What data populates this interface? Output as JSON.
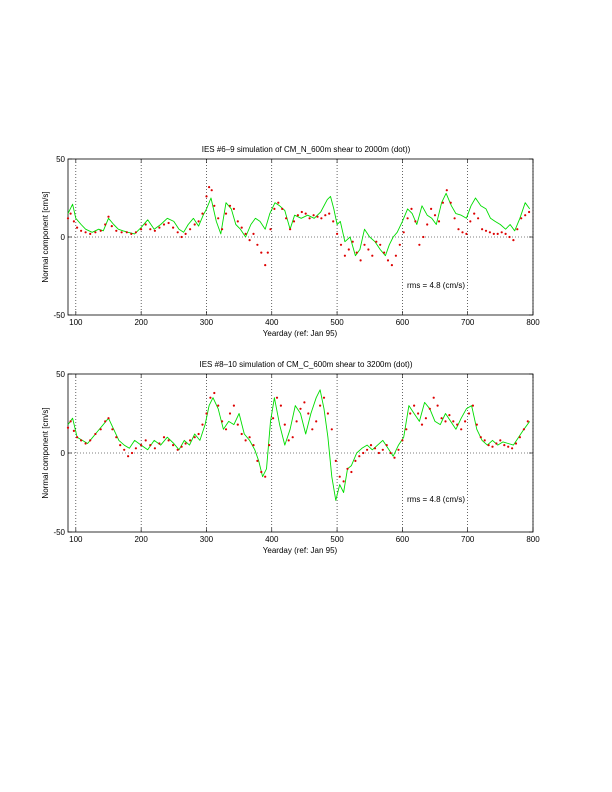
{
  "chart_data": [
    {
      "type": "line",
      "title": "IES #6–9 simulation of CM_N_600m shear to 2000m (dot))",
      "xlabel": "Yearday (ref: Jan 95)",
      "ylabel": "Normal component [cm/s]",
      "xlim": [
        88,
        800
      ],
      "ylim": [
        -50,
        50
      ],
      "xticks": [
        100,
        200,
        300,
        400,
        500,
        600,
        700,
        800
      ],
      "yticks": [
        -50,
        0,
        50
      ],
      "grid": "dotted vertical at x ticks, dotted horizontal at y=0",
      "annotation": "rms = 4.8 (cm/s)",
      "series": [
        {
          "style": "solid",
          "color": "#00dd00",
          "x": [
            88,
            95,
            100,
            108,
            115,
            125,
            135,
            142,
            150,
            158,
            165,
            172,
            180,
            190,
            200,
            210,
            220,
            230,
            240,
            250,
            258,
            265,
            272,
            280,
            288,
            295,
            300,
            307,
            315,
            322,
            330,
            338,
            345,
            352,
            360,
            368,
            375,
            382,
            390,
            397,
            405,
            412,
            420,
            428,
            435,
            445,
            455,
            465,
            475,
            485,
            490,
            495,
            500,
            505,
            512,
            520,
            528,
            535,
            542,
            550,
            558,
            566,
            574,
            580,
            586,
            592,
            600,
            608,
            615,
            622,
            630,
            638,
            645,
            652,
            660,
            667,
            675,
            682,
            690,
            698,
            705,
            712,
            720,
            728,
            735,
            742,
            750,
            758,
            765,
            772,
            780,
            788,
            795
          ],
          "y": [
            15,
            21,
            12,
            8,
            5,
            3,
            5,
            4,
            12,
            8,
            5,
            4,
            3,
            2,
            6,
            11,
            5,
            8,
            12,
            10,
            5,
            3,
            8,
            12,
            7,
            14,
            18,
            25,
            10,
            2,
            22,
            18,
            8,
            5,
            0,
            8,
            12,
            10,
            5,
            15,
            22,
            20,
            17,
            5,
            14,
            12,
            14,
            12,
            16,
            24,
            26,
            18,
            8,
            10,
            -3,
            0,
            -12,
            -8,
            5,
            0,
            -3,
            -8,
            -12,
            -5,
            0,
            3,
            10,
            18,
            15,
            8,
            20,
            14,
            12,
            8,
            22,
            28,
            20,
            15,
            14,
            12,
            20,
            25,
            20,
            18,
            12,
            10,
            8,
            5,
            8,
            4,
            12,
            22,
            18
          ]
        },
        {
          "style": "dots",
          "color": "#dd0000",
          "x": [
            88,
            92,
            97,
            102,
            108,
            115,
            122,
            130,
            138,
            145,
            150,
            155,
            162,
            170,
            178,
            185,
            192,
            200,
            207,
            214,
            221,
            228,
            235,
            242,
            249,
            256,
            262,
            268,
            275,
            282,
            288,
            294,
            300,
            304,
            308,
            312,
            318,
            324,
            330,
            336,
            342,
            348,
            354,
            360,
            366,
            372,
            378,
            384,
            390,
            394,
            398,
            404,
            410,
            416,
            422,
            428,
            434,
            440,
            446,
            452,
            458,
            464,
            470,
            476,
            482,
            488,
            494,
            500,
            506,
            512,
            518,
            524,
            530,
            536,
            542,
            548,
            554,
            560,
            566,
            572,
            578,
            584,
            590,
            596,
            602,
            608,
            614,
            620,
            626,
            632,
            638,
            644,
            650,
            656,
            662,
            668,
            674,
            680,
            686,
            692,
            698,
            704,
            710,
            716,
            722,
            728,
            734,
            740,
            746,
            752,
            758,
            764,
            770,
            776,
            782,
            788,
            794
          ],
          "y": [
            12,
            15,
            10,
            6,
            4,
            3,
            2,
            3,
            4,
            8,
            13,
            7,
            4,
            3,
            3,
            2,
            3,
            5,
            8,
            5,
            4,
            6,
            8,
            9,
            6,
            3,
            0,
            2,
            5,
            8,
            10,
            15,
            26,
            32,
            30,
            20,
            12,
            5,
            15,
            20,
            18,
            10,
            6,
            2,
            -2,
            2,
            -5,
            -10,
            -18,
            -10,
            5,
            18,
            22,
            18,
            12,
            5,
            10,
            14,
            16,
            15,
            12,
            14,
            13,
            12,
            14,
            15,
            10,
            2,
            -5,
            -12,
            -8,
            -3,
            -10,
            -15,
            -5,
            -8,
            -12,
            -3,
            -5,
            -10,
            -15,
            -18,
            -12,
            -5,
            3,
            12,
            18,
            10,
            -5,
            0,
            8,
            18,
            14,
            10,
            22,
            30,
            22,
            12,
            5,
            3,
            2,
            10,
            15,
            12,
            5,
            4,
            3,
            2,
            2,
            3,
            2,
            0,
            -2,
            5,
            12,
            14,
            16
          ]
        }
      ]
    },
    {
      "type": "line",
      "title": "IES #8–10 simulation of CM_C_600m shear to 3200m (dot))",
      "xlabel": "Yearday (ref: Jan 95)",
      "ylabel": "Normal component [cm/s]",
      "xlim": [
        88,
        800
      ],
      "ylim": [
        -50,
        50
      ],
      "xticks": [
        100,
        200,
        300,
        400,
        500,
        600,
        700,
        800
      ],
      "yticks": [
        -50,
        0,
        50
      ],
      "grid": "dotted vertical at x ticks, dotted horizontal at y=0",
      "annotation": "rms = 4.8 (cm/s)",
      "series": [
        {
          "style": "solid",
          "color": "#00dd00",
          "x": [
            88,
            95,
            102,
            110,
            118,
            126,
            134,
            142,
            150,
            158,
            166,
            174,
            182,
            190,
            200,
            210,
            220,
            230,
            240,
            250,
            258,
            266,
            274,
            282,
            290,
            298,
            304,
            310,
            318,
            326,
            334,
            342,
            350,
            358,
            366,
            374,
            380,
            386,
            392,
            398,
            404,
            412,
            420,
            428,
            436,
            444,
            452,
            460,
            468,
            474,
            480,
            486,
            492,
            498,
            504,
            510,
            516,
            522,
            530,
            538,
            546,
            554,
            562,
            570,
            578,
            586,
            594,
            602,
            610,
            618,
            626,
            634,
            642,
            650,
            658,
            666,
            674,
            682,
            690,
            698,
            706,
            714,
            722,
            730,
            738,
            746,
            754,
            762,
            770,
            778,
            786,
            795
          ],
          "y": [
            18,
            22,
            10,
            8,
            6,
            10,
            14,
            18,
            22,
            15,
            8,
            5,
            3,
            8,
            5,
            2,
            8,
            5,
            10,
            6,
            2,
            8,
            5,
            12,
            8,
            18,
            30,
            35,
            28,
            15,
            20,
            18,
            25,
            12,
            8,
            2,
            -5,
            -15,
            -10,
            20,
            35,
            18,
            5,
            15,
            30,
            25,
            12,
            25,
            35,
            40,
            28,
            10,
            -15,
            -30,
            -20,
            -25,
            -10,
            -8,
            0,
            3,
            5,
            2,
            5,
            8,
            3,
            -2,
            5,
            10,
            30,
            25,
            20,
            32,
            28,
            20,
            18,
            25,
            20,
            15,
            22,
            28,
            30,
            15,
            8,
            5,
            8,
            5,
            7,
            6,
            5,
            10,
            15,
            20
          ]
        },
        {
          "style": "dots",
          "color": "#dd0000",
          "x": [
            88,
            92,
            97,
            102,
            108,
            115,
            122,
            130,
            138,
            145,
            150,
            156,
            162,
            168,
            174,
            180,
            186,
            192,
            200,
            207,
            214,
            221,
            228,
            235,
            242,
            249,
            256,
            262,
            268,
            275,
            282,
            288,
            294,
            300,
            306,
            312,
            318,
            324,
            330,
            336,
            342,
            348,
            354,
            360,
            366,
            372,
            378,
            384,
            390,
            396,
            402,
            408,
            414,
            420,
            426,
            432,
            438,
            444,
            450,
            456,
            462,
            468,
            474,
            480,
            486,
            492,
            498,
            504,
            510,
            516,
            522,
            528,
            534,
            540,
            546,
            552,
            558,
            564,
            570,
            576,
            582,
            588,
            594,
            600,
            606,
            612,
            618,
            624,
            630,
            636,
            642,
            648,
            654,
            660,
            666,
            672,
            678,
            684,
            690,
            696,
            702,
            708,
            714,
            720,
            726,
            732,
            738,
            744,
            750,
            756,
            762,
            768,
            774,
            780,
            786,
            792
          ],
          "y": [
            16,
            20,
            14,
            10,
            8,
            6,
            8,
            12,
            15,
            20,
            22,
            15,
            10,
            5,
            2,
            -2,
            0,
            3,
            5,
            8,
            5,
            3,
            6,
            10,
            8,
            5,
            2,
            4,
            6,
            8,
            10,
            12,
            18,
            25,
            35,
            38,
            30,
            20,
            15,
            25,
            30,
            18,
            12,
            8,
            10,
            5,
            -5,
            -12,
            -15,
            5,
            22,
            35,
            30,
            18,
            8,
            10,
            20,
            28,
            32,
            25,
            15,
            20,
            30,
            35,
            25,
            15,
            -5,
            -15,
            -18,
            -10,
            -12,
            -5,
            -2,
            0,
            2,
            5,
            3,
            0,
            2,
            5,
            0,
            -3,
            2,
            8,
            15,
            25,
            30,
            25,
            18,
            22,
            28,
            35,
            30,
            22,
            20,
            24,
            20,
            18,
            15,
            20,
            25,
            30,
            18,
            10,
            8,
            5,
            4,
            6,
            8,
            5,
            4,
            3,
            6,
            10,
            15,
            20
          ]
        }
      ]
    }
  ]
}
